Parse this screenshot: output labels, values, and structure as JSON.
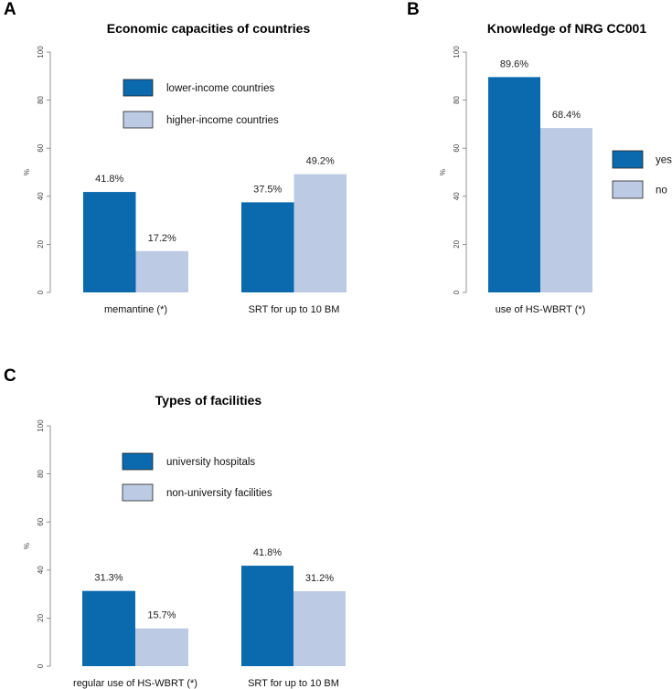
{
  "colors": {
    "primary": "#0b6aad",
    "secondary": "#bccbe3"
  },
  "chart_data": [
    {
      "panel": "A",
      "type": "bar",
      "title": "Economic capacities of countries",
      "ylabel": "%",
      "ylim": [
        0,
        100
      ],
      "yticks": [
        "0",
        "20",
        "40",
        "60",
        "80",
        "100"
      ],
      "categories": [
        "memantine (*)",
        "SRT for up to 10 BM"
      ],
      "series": [
        {
          "name": "lower-income countries",
          "values": [
            41.8,
            37.5
          ],
          "labels": [
            "41.8%",
            "37.5%"
          ]
        },
        {
          "name": "higher-income countries",
          "values": [
            17.2,
            49.2
          ],
          "labels": [
            "17.2%",
            "49.2%"
          ]
        }
      ],
      "legend_position": "top-center"
    },
    {
      "panel": "B",
      "type": "bar",
      "title": "Knowledge of NRG CC001",
      "ylabel": "%",
      "ylim": [
        0,
        100
      ],
      "yticks": [
        "0",
        "20",
        "40",
        "60",
        "80",
        "100"
      ],
      "categories": [
        "use of HS-WBRT (*)"
      ],
      "series": [
        {
          "name": "yes",
          "values": [
            89.6
          ],
          "labels": [
            "89.6%"
          ]
        },
        {
          "name": "no",
          "values": [
            68.4
          ],
          "labels": [
            "68.4%"
          ]
        }
      ],
      "legend_position": "right"
    },
    {
      "panel": "C",
      "type": "bar",
      "title": "Types of facilities",
      "ylabel": "%",
      "ylim": [
        0,
        100
      ],
      "yticks": [
        "0",
        "20",
        "40",
        "60",
        "80",
        "100"
      ],
      "categories": [
        "regular use of HS-WBRT (*)",
        "SRT for up to 10 BM"
      ],
      "series": [
        {
          "name": "university hospitals",
          "values": [
            31.3,
            41.8
          ],
          "labels": [
            "31.3%",
            "41.8%"
          ]
        },
        {
          "name": "non-university facilities",
          "values": [
            15.7,
            31.2
          ],
          "labels": [
            "15.7%",
            "31.2%"
          ]
        }
      ],
      "legend_position": "top-center"
    }
  ]
}
